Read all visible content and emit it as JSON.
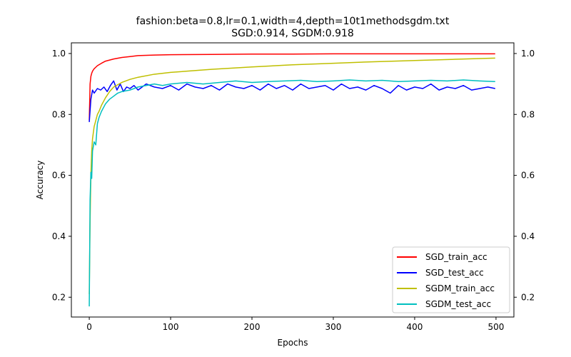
{
  "chart_data": {
    "type": "line",
    "title": "fashion:beta=0.8,lr=0.1,width=4,depth=10t1methodsgdm.txt",
    "subtitle": "SGD:0.914, SGDM:0.918",
    "xlabel": "Epochs",
    "ylabel": "Accuracy",
    "xlim": [
      -22,
      522
    ],
    "ylim": [
      0.135,
      1.035
    ],
    "xticks": [
      0,
      100,
      200,
      300,
      400,
      500
    ],
    "yticks": [
      0.2,
      0.4,
      0.6,
      0.8,
      1.0
    ],
    "xtick_labels": [
      "0",
      "100",
      "200",
      "300",
      "400",
      "500"
    ],
    "ytick_labels": [
      "0.2",
      "0.4",
      "0.6",
      "0.8",
      "1.0"
    ],
    "right_ytick_labels": [
      "0.2",
      "0.4",
      "0.6",
      "0.8",
      "1.0"
    ],
    "grid": false,
    "legend_position": "lower-right",
    "series": [
      {
        "name": "SGD_train_acc",
        "color": "#ff0000",
        "x": [
          0,
          1,
          2,
          3,
          4,
          6,
          8,
          10,
          15,
          20,
          30,
          40,
          50,
          60,
          80,
          100,
          150,
          200,
          250,
          300,
          350,
          400,
          450,
          499
        ],
        "y": [
          0.78,
          0.9,
          0.925,
          0.935,
          0.942,
          0.95,
          0.955,
          0.96,
          0.968,
          0.975,
          0.982,
          0.987,
          0.99,
          0.993,
          0.995,
          0.996,
          0.997,
          0.998,
          0.998,
          0.999,
          0.999,
          0.999,
          0.999,
          0.999
        ]
      },
      {
        "name": "SGD_test_acc",
        "color": "#0000ff",
        "x": [
          0,
          2,
          4,
          6,
          10,
          14,
          18,
          22,
          26,
          30,
          34,
          38,
          42,
          46,
          50,
          55,
          60,
          70,
          80,
          90,
          100,
          110,
          120,
          130,
          140,
          150,
          160,
          170,
          180,
          190,
          200,
          210,
          220,
          230,
          240,
          250,
          260,
          270,
          280,
          290,
          300,
          310,
          320,
          330,
          340,
          350,
          360,
          370,
          380,
          390,
          400,
          410,
          420,
          430,
          440,
          450,
          460,
          470,
          480,
          490,
          499
        ],
        "y": [
          0.775,
          0.85,
          0.88,
          0.87,
          0.885,
          0.88,
          0.89,
          0.875,
          0.895,
          0.91,
          0.88,
          0.9,
          0.875,
          0.89,
          0.885,
          0.895,
          0.88,
          0.9,
          0.89,
          0.885,
          0.895,
          0.88,
          0.9,
          0.89,
          0.885,
          0.895,
          0.88,
          0.9,
          0.89,
          0.885,
          0.895,
          0.88,
          0.9,
          0.885,
          0.895,
          0.88,
          0.9,
          0.885,
          0.89,
          0.895,
          0.88,
          0.9,
          0.885,
          0.89,
          0.88,
          0.895,
          0.885,
          0.87,
          0.895,
          0.88,
          0.89,
          0.885,
          0.9,
          0.88,
          0.89,
          0.885,
          0.895,
          0.88,
          0.885,
          0.89,
          0.885
        ]
      },
      {
        "name": "SGDM_train_acc",
        "color": "#bfbf00",
        "x": [
          0,
          1,
          2,
          3,
          4,
          6,
          8,
          10,
          12,
          15,
          20,
          25,
          30,
          40,
          50,
          60,
          80,
          100,
          150,
          200,
          250,
          300,
          350,
          400,
          450,
          499
        ],
        "y": [
          0.21,
          0.45,
          0.6,
          0.68,
          0.72,
          0.76,
          0.78,
          0.8,
          0.81,
          0.83,
          0.855,
          0.875,
          0.89,
          0.905,
          0.915,
          0.922,
          0.932,
          0.938,
          0.948,
          0.956,
          0.963,
          0.968,
          0.973,
          0.977,
          0.981,
          0.985
        ]
      },
      {
        "name": "SGDM_test_acc",
        "color": "#00bfbf",
        "x": [
          0,
          1,
          2,
          3,
          4,
          6,
          8,
          10,
          12,
          15,
          20,
          25,
          30,
          35,
          40,
          50,
          60,
          70,
          80,
          90,
          100,
          120,
          140,
          160,
          180,
          200,
          220,
          240,
          260,
          280,
          300,
          320,
          340,
          360,
          380,
          400,
          420,
          440,
          460,
          480,
          499
        ],
        "y": [
          0.17,
          0.52,
          0.61,
          0.59,
          0.68,
          0.71,
          0.7,
          0.77,
          0.79,
          0.81,
          0.835,
          0.85,
          0.86,
          0.87,
          0.875,
          0.88,
          0.89,
          0.895,
          0.9,
          0.895,
          0.9,
          0.905,
          0.9,
          0.905,
          0.91,
          0.905,
          0.908,
          0.91,
          0.912,
          0.908,
          0.91,
          0.913,
          0.91,
          0.912,
          0.908,
          0.91,
          0.912,
          0.91,
          0.913,
          0.91,
          0.908
        ]
      }
    ]
  }
}
